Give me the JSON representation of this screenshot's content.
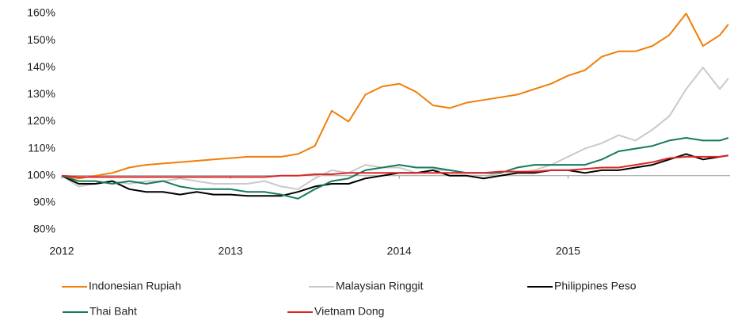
{
  "chart_data": {
    "type": "line",
    "x": [
      2012.0,
      2012.1,
      2012.2,
      2012.3,
      2012.4,
      2012.5,
      2012.6,
      2012.7,
      2012.8,
      2012.9,
      2013.0,
      2013.1,
      2013.2,
      2013.3,
      2013.4,
      2013.5,
      2013.6,
      2013.7,
      2013.8,
      2013.9,
      2014.0,
      2014.1,
      2014.2,
      2014.3,
      2014.4,
      2014.5,
      2014.6,
      2014.7,
      2014.8,
      2014.9,
      2015.0,
      2015.1,
      2015.2,
      2015.3,
      2015.4,
      2015.5,
      2015.6,
      2015.7,
      2015.8,
      2015.9,
      2015.95
    ],
    "series": [
      {
        "name": "Indonesian Rupiah",
        "color": "#f07f09",
        "values": [
          100,
          99,
          100,
          101,
          103,
          104,
          104.5,
          105,
          105.5,
          106,
          106.5,
          107,
          107,
          107,
          108,
          111,
          124,
          120,
          130,
          133,
          134,
          131,
          126,
          125,
          127,
          128,
          129,
          130,
          132,
          134,
          137,
          139,
          144,
          146,
          146,
          148,
          152,
          160,
          148,
          152,
          156
        ]
      },
      {
        "name": "Malaysian Ringgit",
        "color": "#c9c9c9",
        "values": [
          100,
          96,
          97,
          98,
          97,
          98,
          98,
          99,
          98,
          97,
          97,
          97,
          98,
          96,
          95,
          99,
          102,
          101,
          104,
          103,
          103,
          101,
          102,
          102,
          101,
          101,
          100,
          101,
          102,
          104,
          107,
          110,
          112,
          115,
          113,
          117,
          122,
          132,
          140,
          132,
          136
        ]
      },
      {
        "name": "Philippines Peso",
        "color": "#000000",
        "values": [
          100,
          97,
          97,
          98,
          95,
          94,
          94,
          93,
          94,
          93,
          93,
          92.5,
          92.5,
          92.5,
          94,
          96,
          97,
          97,
          99,
          100,
          101,
          101,
          102,
          100,
          100,
          99,
          100,
          101,
          101,
          102,
          102,
          101,
          102,
          102,
          103,
          104,
          106,
          108,
          106,
          107,
          107.5
        ]
      },
      {
        "name": "Thai Baht",
        "color": "#177a5c",
        "values": [
          100,
          98,
          98,
          97,
          98,
          97,
          98,
          96,
          95,
          95,
          95,
          94,
          94,
          93,
          91.5,
          95,
          98,
          99,
          102,
          103,
          104,
          103,
          103,
          102,
          101,
          101,
          101,
          103,
          104,
          104,
          104,
          104,
          106,
          109,
          110,
          111,
          113,
          114,
          113,
          113,
          114
        ]
      },
      {
        "name": "Vietnam Dong",
        "color": "#e02424",
        "values": [
          100,
          99.5,
          99.5,
          99.5,
          99.5,
          99.5,
          99.5,
          99.5,
          99.5,
          99.5,
          99.5,
          99.5,
          99.5,
          100,
          100,
          100.5,
          100.5,
          101,
          101,
          101,
          101,
          101,
          101,
          101,
          101,
          101,
          101.5,
          101.5,
          101.5,
          102,
          102,
          102.5,
          103,
          103,
          104,
          105,
          106.5,
          107,
          107,
          107,
          107.5
        ]
      }
    ],
    "xlim": [
      2012,
      2015.96
    ],
    "xticks": [
      2012,
      2013,
      2014,
      2015
    ],
    "ylim": [
      80,
      160
    ],
    "yticks": [
      {
        "value": 80,
        "label": "80%"
      },
      {
        "value": 90,
        "label": "90%"
      },
      {
        "value": 100,
        "label": "100%"
      },
      {
        "value": 110,
        "label": "110%"
      },
      {
        "value": 120,
        "label": "120%"
      },
      {
        "value": 130,
        "label": "130%"
      },
      {
        "value": 140,
        "label": "140%"
      },
      {
        "value": 150,
        "label": "150%"
      },
      {
        "value": 160,
        "label": "160%"
      }
    ],
    "xaxis_crosses": 100,
    "grid": false,
    "legend": "bottom"
  }
}
